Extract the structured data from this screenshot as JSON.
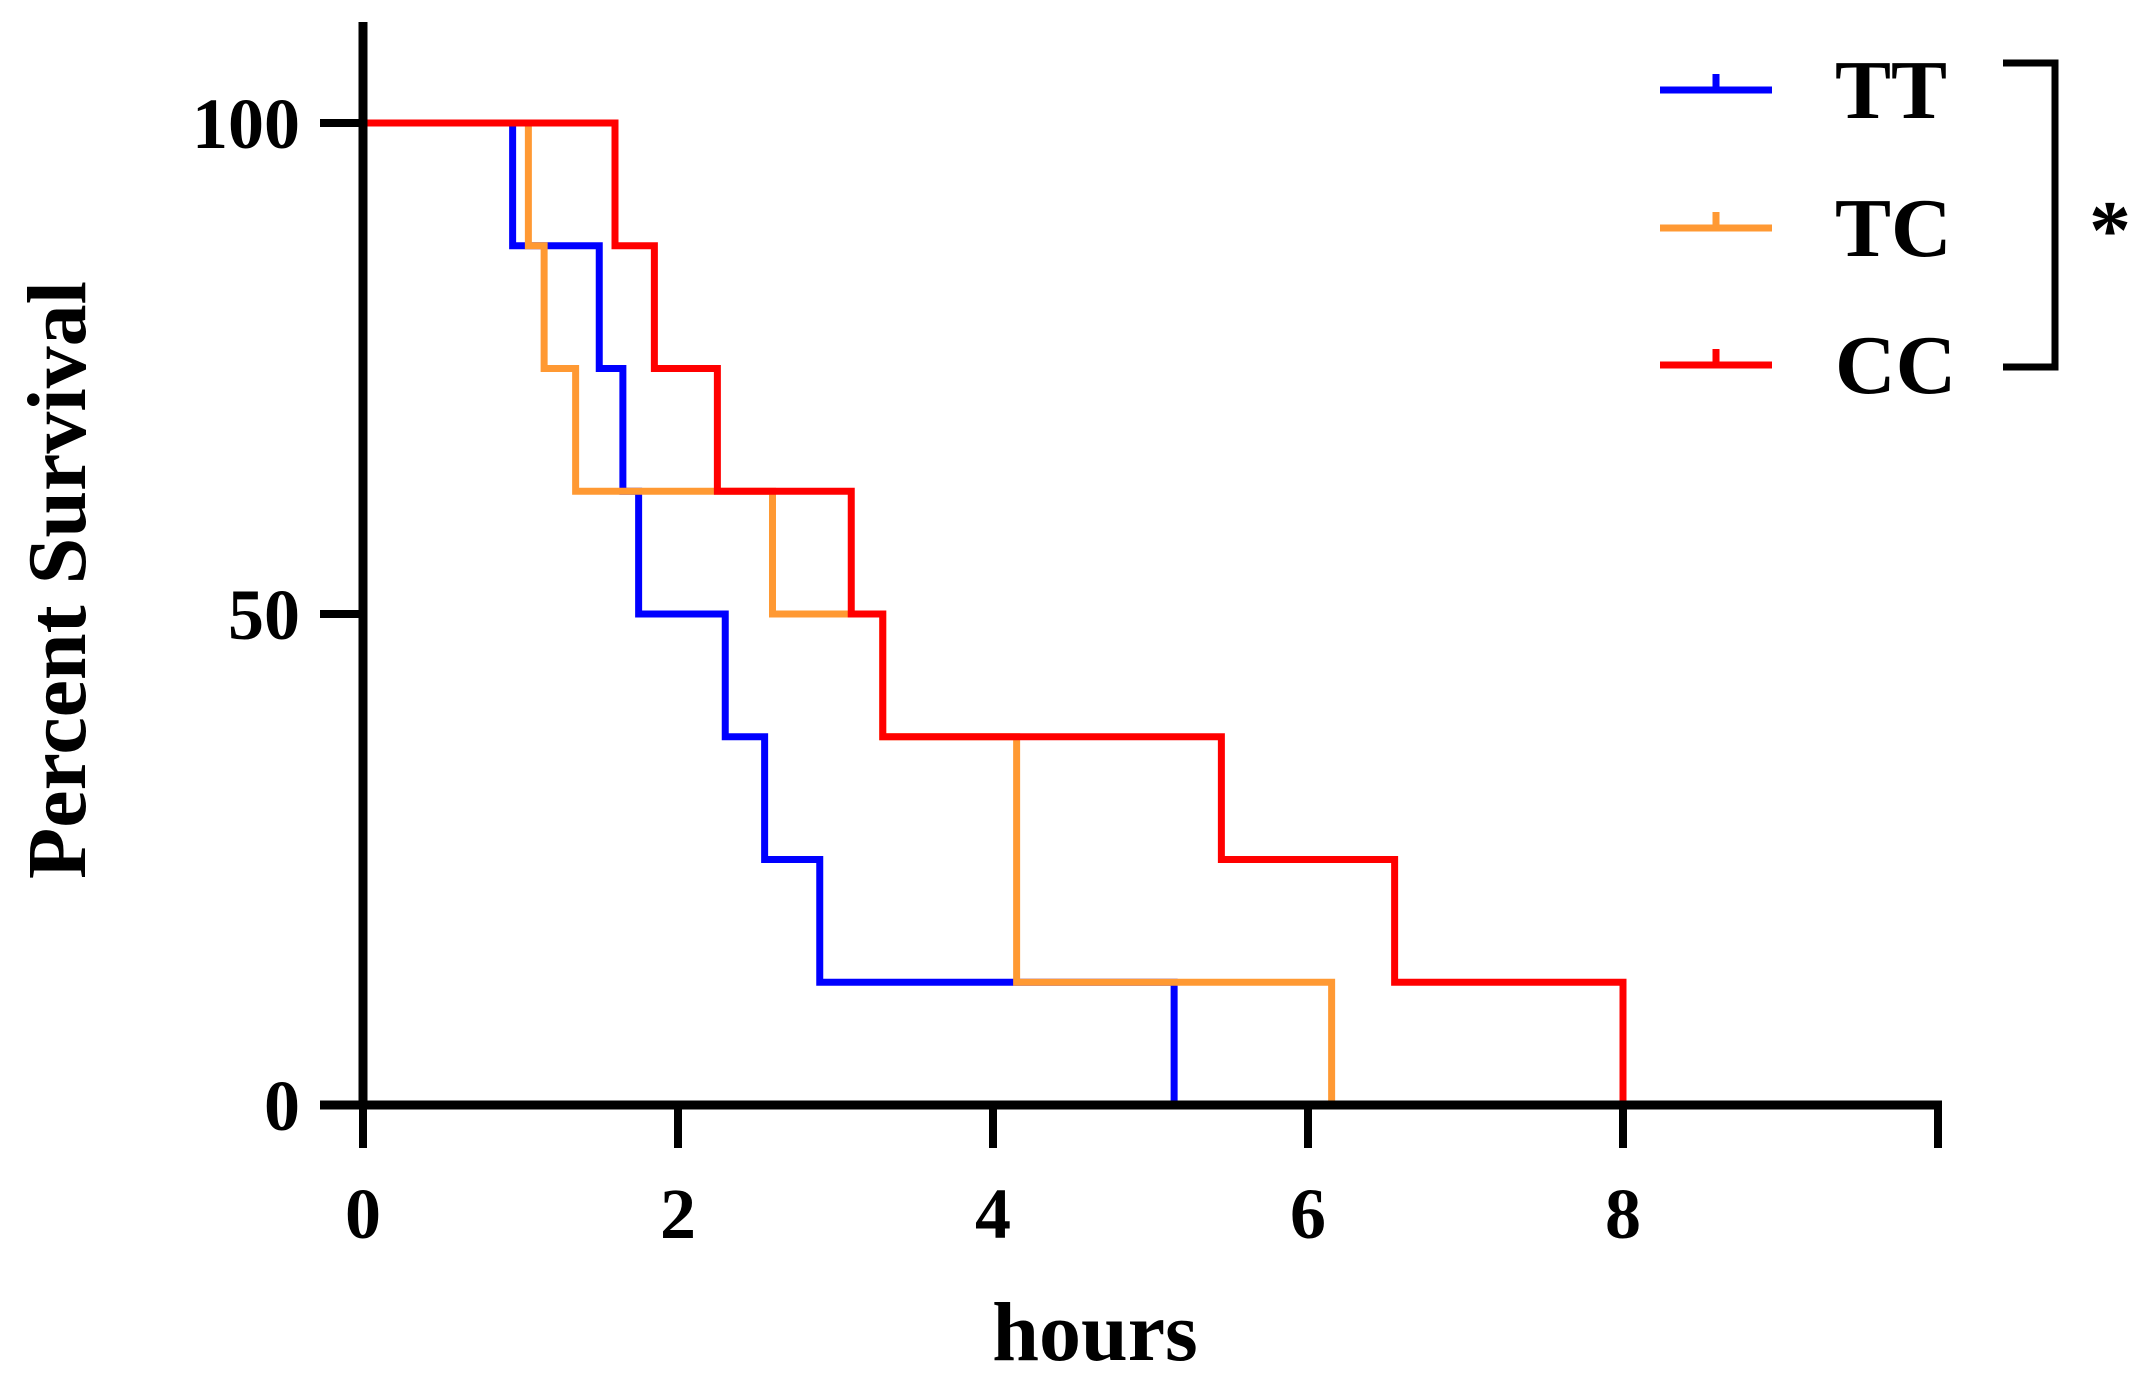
{
  "chart_data": {
    "type": "line",
    "subtype": "kaplan-meier-step",
    "title": "",
    "xlabel": "hours",
    "ylabel": "Percent Survival",
    "xlim": [
      0,
      10
    ],
    "ylim": [
      0,
      112
    ],
    "xticks": [
      0,
      2,
      4,
      6,
      8
    ],
    "xtick_labels": [
      "0",
      "2",
      "4",
      "6",
      "8"
    ],
    "yticks": [
      0,
      50,
      100
    ],
    "ytick_labels": [
      "0",
      "50",
      "100"
    ],
    "grid": false,
    "legend_position": "top-right",
    "series": [
      {
        "name": "TT",
        "color": "#0000ff",
        "x": [
          0,
          0.95,
          1.5,
          1.65,
          1.75,
          2.3,
          2.55,
          2.9,
          5.15
        ],
        "y": [
          100,
          87.5,
          75,
          62.5,
          50,
          37.5,
          25,
          12.5,
          0
        ]
      },
      {
        "name": "TC",
        "color": "#ff9933",
        "x": [
          0,
          1.05,
          1.15,
          1.35,
          2.6,
          3.3,
          4.15,
          6.15
        ],
        "y": [
          100,
          87.5,
          75,
          62.5,
          50,
          37.5,
          12.5,
          0
        ]
      },
      {
        "name": "CC",
        "color": "#ff0000",
        "x": [
          0,
          1.6,
          1.85,
          2.25,
          3.1,
          3.3,
          5.45,
          6.55,
          8.0
        ],
        "y": [
          100,
          87.5,
          75,
          62.5,
          50,
          37.5,
          25,
          12.5,
          0
        ]
      }
    ],
    "annotations": [
      {
        "text": "*",
        "type": "significance-bracket",
        "spans": [
          "TT",
          "CC"
        ]
      }
    ]
  }
}
